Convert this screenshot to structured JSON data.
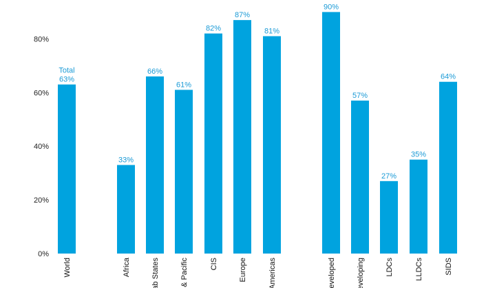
{
  "chart_data": {
    "type": "bar",
    "categories": [
      "World",
      "Africa",
      "ab States",
      "& Pacific",
      "CIS",
      "Europe",
      "Americas",
      "eveloped",
      "eveloping",
      "LDCs",
      "LLDCs",
      "SIDS"
    ],
    "values": [
      63,
      33,
      66,
      61,
      82,
      87,
      81,
      90,
      57,
      27,
      35,
      64
    ],
    "value_labels": [
      "63%",
      "33%",
      "66%",
      "61%",
      "82%",
      "87%",
      "81%",
      "90%",
      "57%",
      "27%",
      "35%",
      "64%"
    ],
    "annotations": [
      {
        "category": "World",
        "text": "Total"
      }
    ],
    "y_ticks": [
      0,
      20,
      40,
      60,
      80
    ],
    "y_tick_labels": [
      "0%",
      "20%",
      "40%",
      "60%",
      "80%"
    ],
    "ylim": [
      0,
      90
    ],
    "grid": false,
    "legend": "none",
    "colors": {
      "bar": "#00a3df",
      "value_label": "#1a9ad6"
    }
  }
}
